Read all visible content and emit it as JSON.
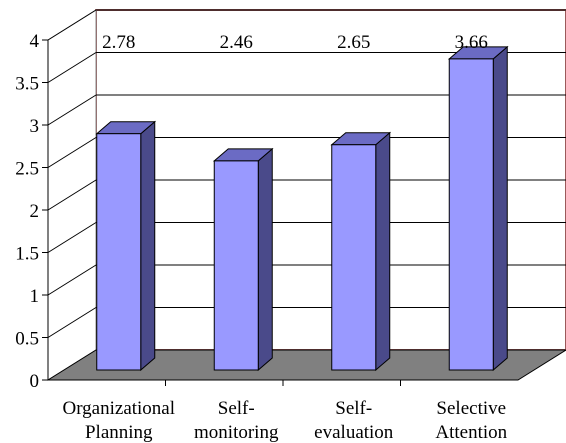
{
  "chart_data": {
    "type": "bar",
    "style": "3d-column",
    "categories": [
      [
        "Organizational",
        "Planning"
      ],
      [
        "Self-",
        "monitoring"
      ],
      [
        "Self-",
        "evaluation"
      ],
      [
        "Selective",
        "Attention"
      ]
    ],
    "values": [
      2.78,
      2.46,
      2.65,
      3.66
    ],
    "data_labels": [
      "2.78",
      "2.46",
      "2.65",
      "3.66"
    ],
    "yticks": [
      "0",
      "0.5",
      "1",
      "1.5",
      "2",
      "2.5",
      "3",
      "3.5",
      "4"
    ],
    "ylim": [
      0,
      4
    ],
    "grid": true,
    "legend": "none",
    "title": "",
    "xlabel": "",
    "ylabel": "",
    "colors": {
      "bar_front": "#9999FF",
      "bar_top": "#6B6BC4",
      "bar_side": "#4A4A8A",
      "floor": "#808080",
      "back_wall_border": "#9B5A5A",
      "grid": "#000000"
    }
  }
}
